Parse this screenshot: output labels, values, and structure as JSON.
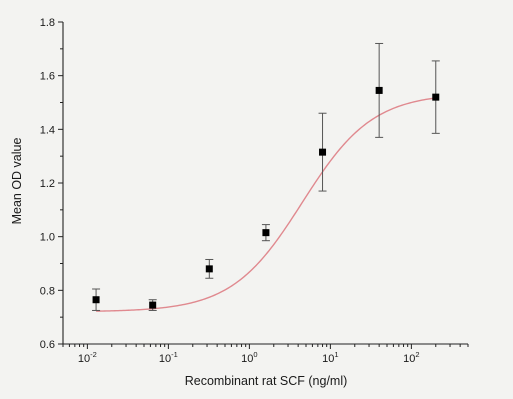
{
  "chart_data": {
    "type": "scatter",
    "title": "",
    "xlabel": "Recombinant rat SCF (ng/ml)",
    "ylabel": "Mean OD value",
    "xscale": "log",
    "xlim": [
      0.005,
      500
    ],
    "ylim": [
      0.6,
      1.8
    ],
    "x_ticks": [
      {
        "value": 0.01,
        "base": "10",
        "exp": "-2"
      },
      {
        "value": 0.1,
        "base": "10",
        "exp": "-1"
      },
      {
        "value": 1,
        "base": "10",
        "exp": "0"
      },
      {
        "value": 10,
        "base": "10",
        "exp": "1"
      },
      {
        "value": 100,
        "base": "10",
        "exp": "2"
      }
    ],
    "y_ticks": [
      "0.6",
      "0.8",
      "1.0",
      "1.2",
      "1.4",
      "1.6",
      "1.8"
    ],
    "points": [
      {
        "x": 0.0128,
        "y": 0.765,
        "err": 0.04
      },
      {
        "x": 0.064,
        "y": 0.745,
        "err": 0.02
      },
      {
        "x": 0.32,
        "y": 0.88,
        "err": 0.035
      },
      {
        "x": 1.6,
        "y": 1.015,
        "err": 0.03
      },
      {
        "x": 8,
        "y": 1.315,
        "err": 0.145
      },
      {
        "x": 40,
        "y": 1.545,
        "err": 0.175
      },
      {
        "x": 200,
        "y": 1.52,
        "err": 0.135
      }
    ],
    "fit_curve": {
      "type": "sigmoid",
      "bottom": 0.72,
      "top": 1.535,
      "ec50": 4.5,
      "hill": 1.0
    },
    "grid": false,
    "legend": "none",
    "colors": {
      "markers": "#000000",
      "fit": "#e0898f",
      "axis": "#222222",
      "background": "#f3f3f1"
    }
  }
}
